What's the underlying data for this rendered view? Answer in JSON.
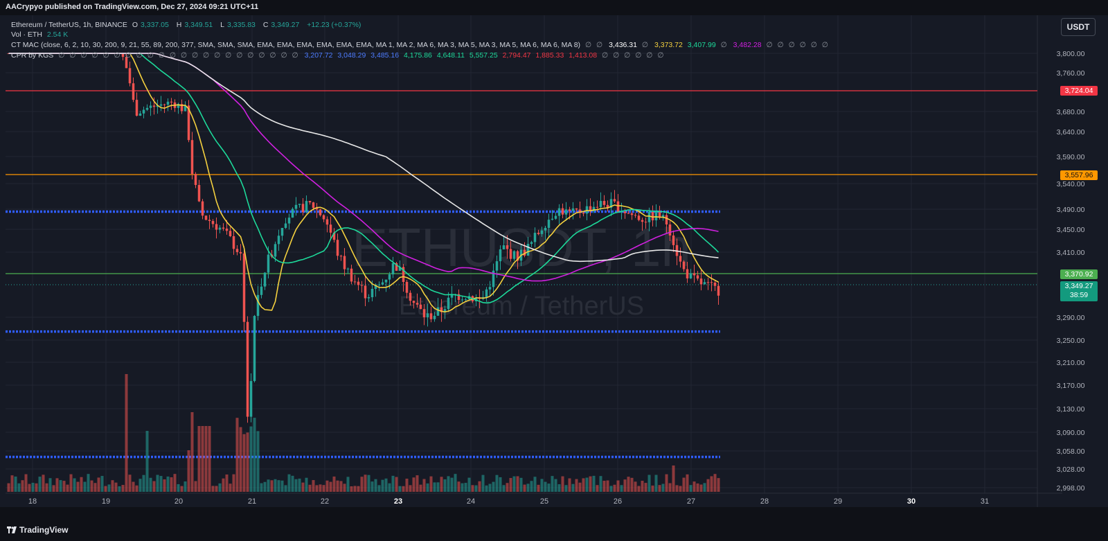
{
  "header": {
    "publish_text": "AACrypyo published on TradingView.com, Dec 27, 2024 09:21 UTC+11"
  },
  "legend": {
    "symbol_line": {
      "name": "Ethereum / TetherUS, 1h, BINANCE",
      "open_label": "O",
      "open": "3,337.05",
      "high_label": "H",
      "high": "3,349.51",
      "low_label": "L",
      "low": "3,335.83",
      "close_label": "C",
      "close": "3,349.27",
      "change": "+12.23 (+0.37%)"
    },
    "volume_line": {
      "label": "Vol · ETH",
      "value": "2.54 K"
    },
    "mac_line": {
      "label": "CT MAC (close, 6, 2, 10, 30, 200, 9, 21, 55, 89, 200, 377, SMA, SMA, SMA, EMA, EMA, EMA, EMA, EMA, EMA, MA 1, MA 2, MA 6, MA 3, MA 5, MA 3, MA 5, MA 6, MA 6, MA 8)",
      "symbols_a": "∅ ∅",
      "v1": "3,436.31",
      "symbols_b": "∅",
      "v2": "3,373.72",
      "v3": "3,407.99",
      "symbols_c": "∅",
      "v4": "3,482.28",
      "symbols_d": "∅ ∅ ∅ ∅ ∅ ∅"
    },
    "cpr_line": {
      "label": "CPR by KGS",
      "symbols": "∅ ∅ ∅ ∅ ∅ ∅ ∅ ∅ ∅ ∅ ∅ ∅ ∅ ∅ ∅ ∅ ∅ ∅ ∅ ∅ ∅ ∅",
      "v1": "3,207.72",
      "v2": "3,048.29",
      "v3": "3,485.16",
      "v4": "4,175.86",
      "v5": "4,648.11",
      "v6": "5,557.25",
      "v7": "2,794.47",
      "v8": "1,885.33",
      "v9": "1,413.08",
      "symbols_end": "∅ ∅ ∅ ∅ ∅ ∅"
    }
  },
  "watermark": {
    "ticker": "ETHUSDT, 1h",
    "name": "Ethereum / TetherUS"
  },
  "currency_button": "USDT",
  "price_axis": {
    "labels": [
      "3,800.00",
      "3,760.00",
      "3,680.00",
      "3,640.00",
      "3,590.00",
      "3,540.00",
      "3,490.00",
      "3,450.00",
      "3,410.00",
      "3,290.00",
      "3,250.00",
      "3,210.00",
      "3,170.00",
      "3,130.00",
      "3,090.00",
      "3,058.00",
      "3,028.00",
      "2,998.00"
    ],
    "tags": {
      "resistance_red": "3,724.04",
      "resistance_orange": "3,557.96",
      "support_green": "3,370.92",
      "last_price": "3,349.27",
      "countdown": "38:59"
    }
  },
  "time_axis": {
    "labels": [
      "18",
      "19",
      "20",
      "21",
      "22",
      "23",
      "24",
      "25",
      "26",
      "27",
      "28",
      "29",
      "30",
      "31"
    ]
  },
  "footer": {
    "brand": "TradingView"
  },
  "colors": {
    "background": "#161a25",
    "grid": "#222632",
    "up": "#26a69a",
    "down": "#ef5350",
    "ma_yellow": "#f4d03f",
    "ma_green": "#1dd99a",
    "ma_purple": "#d020e0",
    "ma_white": "#e8e8e8",
    "level_red": "#f23645",
    "level_orange": "#ff9800",
    "level_green": "#4caf50",
    "cpr_blue": "#2f5cff"
  },
  "levels": {
    "resistance_red": 3724.04,
    "resistance_orange": 3557.96,
    "support_green": 3370.92,
    "cpr_upper": 3485.16,
    "cpr_lower": 3265
  },
  "last_price_value": 3349.27
}
